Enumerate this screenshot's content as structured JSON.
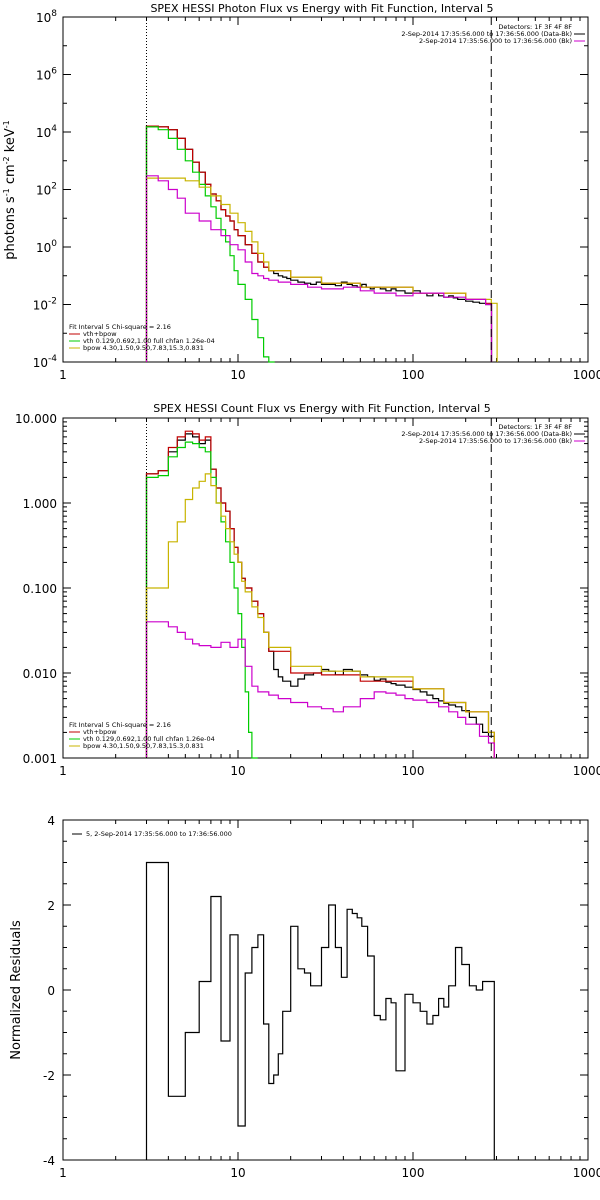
{
  "chart_data": [
    {
      "type": "line",
      "title": "SPEX HESSI Photon Flux vs Energy with Fit Function, Interval 5",
      "ylabel": "photons s-1 cm-2 keV-1",
      "ylabel_parts": {
        "photons": "photons s",
        "s_exp": "-1",
        "cm": " cm",
        "cm_exp": "-2",
        "kev": " keV",
        "kev_exp": "-1"
      },
      "xlim": [
        1,
        1000
      ],
      "ylim": [
        0.0001,
        100000000
      ],
      "xscale": "log",
      "yscale": "log",
      "x_ticks": [
        "1",
        "10",
        "100",
        "1000"
      ],
      "y_ticks": [
        {
          "base": "10",
          "exp": "-4"
        },
        {
          "base": "10",
          "exp": "-2"
        },
        {
          "base": "10",
          "exp": "0"
        },
        {
          "base": "10",
          "exp": "2"
        },
        {
          "base": "10",
          "exp": "4"
        },
        {
          "base": "10",
          "exp": "6"
        },
        {
          "base": "10",
          "exp": "8"
        }
      ],
      "vlines": [
        3,
        280
      ],
      "legend_top": [
        "Detectors: 1F 3F 4F 8F",
        "2-Sep-2014 17:35:56.000 to 17:36:56.000 (Data-Bk)",
        "2-Sep-2014 17:35:56.000 to 17:36:56.000 (Bk)"
      ],
      "legend_bottom": [
        "Fit Interval 5   Chi-square = 2.16",
        "vth+bpow",
        "vth 0.129,0.692,1.00  full chfan 1.26e-04",
        "bpow 4.30,1.50,9.50,7.83,15.3,0.831"
      ],
      "series": [
        {
          "name": "2-Sep-2014 17:35:56.000 to 17:36:56.000 (Data-Bk)",
          "color": "#000000",
          "x": [
            3,
            3.5,
            4,
            4.5,
            5,
            5.5,
            6,
            6.5,
            7,
            7.5,
            8,
            8.5,
            9,
            9.5,
            10,
            11,
            12,
            13,
            14,
            15,
            16,
            17,
            18,
            19,
            20,
            22,
            24,
            26,
            28,
            30,
            33,
            36,
            39,
            42,
            45,
            48,
            51,
            54,
            57,
            60,
            65,
            70,
            75,
            80,
            85,
            90,
            100,
            110,
            120,
            130,
            140,
            150,
            160,
            170,
            180,
            200,
            220,
            240,
            260
          ],
          "y": [
            16000,
            15000,
            12000,
            6000,
            2500,
            900,
            400,
            150,
            70,
            40,
            20,
            12,
            8,
            4,
            2.5,
            1.2,
            0.6,
            0.3,
            0.2,
            0.15,
            0.12,
            0.1,
            0.09,
            0.08,
            0.07,
            0.06,
            0.055,
            0.05,
            0.06,
            0.05,
            0.05,
            0.045,
            0.06,
            0.05,
            0.045,
            0.04,
            0.05,
            0.04,
            0.035,
            0.04,
            0.035,
            0.03,
            0.035,
            0.03,
            0.03,
            0.025,
            0.03,
            0.025,
            0.02,
            0.025,
            0.02,
            0.018,
            0.02,
            0.017,
            0.015,
            0.013,
            0.012,
            0.011,
            0.01
          ]
        },
        {
          "name": "vth+bpow",
          "color": "#c00000",
          "x": [
            3,
            3.5,
            4,
            4.5,
            5,
            5.5,
            6,
            6.5,
            7,
            7.5,
            8,
            8.5,
            9,
            9.5,
            10,
            11,
            12,
            13,
            14,
            15,
            20,
            30,
            50,
            100,
            200,
            260
          ],
          "y": [
            16000,
            15000,
            12000,
            6000,
            2500,
            900,
            400,
            150,
            70,
            40,
            20,
            12,
            8,
            4,
            2.5,
            1.2,
            0.6,
            0.3,
            0.2,
            0.15,
            0.09,
            0.055,
            0.04,
            0.025,
            0.015,
            0.011
          ]
        },
        {
          "name": "vth 0.129,0.692,1.00  full chfan 1.26e-04",
          "color": "#00cc00",
          "x": [
            3,
            3.5,
            4,
            4.5,
            5,
            5.5,
            6,
            6.5,
            7,
            7.5,
            8,
            8.5,
            9,
            9.5,
            10,
            11,
            12,
            13,
            14,
            15
          ],
          "y": [
            15000,
            12000,
            6000,
            2500,
            1000,
            400,
            150,
            60,
            25,
            10,
            4,
            1.5,
            0.5,
            0.15,
            0.05,
            0.015,
            0.003,
            0.0007,
            0.00015,
            0.0001
          ]
        },
        {
          "name": "bpow 4.30,1.50,9.50,7.83,15.3,0.831",
          "color": "#c8b400",
          "x": [
            3,
            4,
            5,
            6,
            7,
            8,
            9,
            10,
            11,
            12,
            13,
            14,
            15,
            20,
            30,
            50,
            100,
            200,
            280
          ],
          "y": [
            250,
            250,
            200,
            120,
            60,
            30,
            15,
            7,
            3.5,
            1.5,
            0.6,
            0.3,
            0.15,
            0.09,
            0.055,
            0.04,
            0.025,
            0.015,
            0.011
          ]
        },
        {
          "name": "2-Sep-2014 17:35:56.000 to 17:36:56.000 (Bk)",
          "color": "#cc00cc",
          "x": [
            3,
            3.5,
            4,
            4.5,
            5,
            6,
            7,
            8,
            9,
            10,
            11,
            12,
            13,
            14,
            15,
            17,
            20,
            25,
            30,
            40,
            50,
            60,
            80,
            100,
            150,
            200,
            260
          ],
          "y": [
            300,
            200,
            100,
            50,
            15,
            8,
            4,
            2.5,
            1.2,
            0.8,
            0.3,
            0.12,
            0.1,
            0.08,
            0.07,
            0.06,
            0.05,
            0.04,
            0.035,
            0.04,
            0.03,
            0.025,
            0.02,
            0.025,
            0.018,
            0.015,
            0.01
          ]
        }
      ]
    },
    {
      "type": "line",
      "title": "SPEX HESSI Count Flux vs Energy with Fit Function, Interval 5",
      "xlim": [
        1,
        1000
      ],
      "ylim": [
        0.001,
        10
      ],
      "xscale": "log",
      "yscale": "log",
      "x_ticks": [
        "1",
        "10",
        "100",
        "1000"
      ],
      "y_ticks": [
        "0.001",
        "0.010",
        "0.100",
        "1.000",
        "10.000"
      ],
      "vlines": [
        3,
        280
      ],
      "legend_top": [
        "Detectors: 1F 3F 4F 8F",
        "2-Sep-2014 17:35:56.000 to 17:36:56.000 (Data-Bk)",
        "2-Sep-2014 17:35:56.000 to 17:36:56.000 (Bk)"
      ],
      "legend_bottom": [
        "Fit Interval 5   Chi-square = 2.16",
        "vth+bpow",
        "vth 0.129,0.692,1.00  full chfan 1.26e-04",
        "bpow 4.30,1.50,9.50,7.83,15.3,0.831"
      ],
      "series": [
        {
          "name": "2-Sep-2014 17:35:56.000 to 17:36:56.000 (Data-Bk)",
          "color": "#000000",
          "x": [
            3,
            3.5,
            4,
            4.5,
            5,
            5.5,
            6,
            6.5,
            7,
            7.5,
            8,
            8.5,
            9,
            9.5,
            10,
            10.5,
            11,
            12,
            13,
            14,
            15,
            16,
            17,
            18,
            20,
            22,
            24,
            27,
            30,
            33,
            36,
            40,
            45,
            50,
            55,
            60,
            65,
            70,
            75,
            80,
            90,
            100,
            110,
            120,
            130,
            140,
            150,
            160,
            175,
            190,
            210,
            230,
            250,
            270
          ],
          "y": [
            2.2,
            2.4,
            4,
            5.5,
            6.5,
            6,
            5,
            5.5,
            2.5,
            1.5,
            1,
            0.8,
            0.5,
            0.3,
            0.2,
            0.13,
            0.1,
            0.07,
            0.05,
            0.03,
            0.018,
            0.011,
            0.009,
            0.008,
            0.007,
            0.0085,
            0.0095,
            0.01,
            0.011,
            0.0105,
            0.0095,
            0.011,
            0.0105,
            0.0095,
            0.009,
            0.0082,
            0.0085,
            0.0078,
            0.0075,
            0.0072,
            0.0068,
            0.0064,
            0.006,
            0.0055,
            0.005,
            0.0047,
            0.0044,
            0.0042,
            0.004,
            0.0036,
            0.003,
            0.0025,
            0.002,
            0.0018
          ]
        },
        {
          "name": "vth+bpow",
          "color": "#c00000",
          "x": [
            3,
            3.5,
            4,
            4.5,
            5,
            5.5,
            6,
            6.5,
            7,
            7.5,
            8,
            8.5,
            9,
            9.5,
            10,
            10.5,
            11,
            12,
            13,
            14,
            15,
            20,
            30,
            50,
            100,
            150,
            200,
            270
          ],
          "y": [
            2.2,
            2.4,
            4.5,
            6,
            7,
            6.5,
            5.5,
            6,
            2.5,
            1.5,
            1,
            0.8,
            0.5,
            0.3,
            0.2,
            0.13,
            0.1,
            0.07,
            0.05,
            0.03,
            0.018,
            0.01,
            0.0095,
            0.008,
            0.0065,
            0.0045,
            0.0035,
            0.002
          ]
        },
        {
          "name": "vth 0.129,0.692,1.00  full chfan 1.26e-04",
          "color": "#00cc00",
          "x": [
            3,
            3.5,
            4,
            4.5,
            5,
            5.5,
            6,
            6.5,
            7,
            7.5,
            8,
            8.5,
            9,
            9.5,
            10,
            10.5,
            11,
            11.5,
            12
          ],
          "y": [
            2,
            2.1,
            3.5,
            4.5,
            5.2,
            5,
            4.5,
            4,
            2,
            1,
            0.6,
            0.35,
            0.2,
            0.1,
            0.05,
            0.02,
            0.006,
            0.002,
            0.001
          ]
        },
        {
          "name": "bpow 4.30,1.50,9.50,7.83,15.3,0.831",
          "color": "#c8b400",
          "x": [
            3,
            3.5,
            4,
            4.5,
            5,
            5.5,
            6,
            6.5,
            7,
            7.5,
            8,
            8.5,
            9,
            9.5,
            10,
            10.5,
            11,
            12,
            13,
            14,
            15,
            20,
            30,
            50,
            100,
            150,
            200,
            270
          ],
          "y": [
            0.1,
            0.1,
            0.35,
            0.6,
            1.1,
            1.5,
            1.8,
            2.2,
            1.6,
            1,
            0.7,
            0.5,
            0.35,
            0.25,
            0.2,
            0.12,
            0.09,
            0.06,
            0.045,
            0.03,
            0.02,
            0.012,
            0.0105,
            0.009,
            0.0065,
            0.0045,
            0.0035,
            0.002
          ]
        },
        {
          "name": "2-Sep-2014 17:35:56.000 to 17:36:56.000 (Bk)",
          "color": "#cc00cc",
          "x": [
            3,
            3.5,
            4,
            4.5,
            5,
            5.5,
            6,
            7,
            8,
            9,
            10,
            11,
            12,
            13,
            15,
            17,
            20,
            22,
            25,
            30,
            35,
            40,
            50,
            60,
            70,
            80,
            90,
            100,
            120,
            140,
            160,
            180,
            200,
            240,
            270
          ],
          "y": [
            0.04,
            0.04,
            0.035,
            0.03,
            0.025,
            0.022,
            0.021,
            0.02,
            0.023,
            0.02,
            0.025,
            0.012,
            0.007,
            0.006,
            0.0055,
            0.005,
            0.0045,
            0.0045,
            0.004,
            0.0038,
            0.0035,
            0.004,
            0.005,
            0.006,
            0.0058,
            0.0055,
            0.005,
            0.0048,
            0.0045,
            0.004,
            0.0035,
            0.003,
            0.0025,
            0.0018,
            0.0015
          ]
        }
      ]
    },
    {
      "type": "line",
      "ylabel": "Normalized Residuals",
      "xlim": [
        1,
        1000
      ],
      "ylim": [
        -4,
        4
      ],
      "xscale": "log",
      "x_ticks": [
        "1",
        "10",
        "100",
        "1000"
      ],
      "y_ticks": [
        "-4",
        "-2",
        "0",
        "2",
        "4"
      ],
      "legend_top": [
        "5,  2-Sep-2014 17:35:56.000 to 17:36:56.000"
      ],
      "series": [
        {
          "name": "5,  2-Sep-2014 17:35:56.000 to 17:36:56.000",
          "color": "#000000",
          "x": [
            3,
            3.5,
            4,
            4.5,
            5,
            5.5,
            6,
            6.5,
            7,
            7.5,
            8,
            8.5,
            9,
            9.5,
            10,
            10.5,
            11,
            12,
            13,
            14,
            15,
            16,
            17,
            18,
            20,
            22,
            24,
            26,
            28,
            30,
            33,
            36,
            39,
            42,
            45,
            48,
            51,
            55,
            60,
            65,
            70,
            75,
            80,
            90,
            100,
            110,
            120,
            130,
            140,
            150,
            160,
            175,
            190,
            210,
            230,
            250,
            270
          ],
          "y": [
            3,
            3,
            -2.5,
            -2.5,
            -1,
            -1,
            0.2,
            0.2,
            2.2,
            2.2,
            -1.2,
            -1.2,
            1.3,
            1.3,
            -3.2,
            -3.2,
            0.4,
            1,
            1.3,
            -0.8,
            -2.2,
            -2,
            -1.5,
            -0.5,
            1.5,
            0.5,
            0.4,
            0.1,
            0.1,
            1,
            2,
            1,
            0.3,
            1.9,
            1.8,
            1.7,
            1.5,
            0.8,
            -0.6,
            -0.7,
            -0.2,
            -0.3,
            -1.9,
            -0.1,
            -0.3,
            -0.5,
            -0.8,
            -0.6,
            -0.2,
            -0.4,
            0.1,
            1,
            0.6,
            0.1,
            0,
            0.2,
            0.2
          ]
        }
      ]
    }
  ]
}
